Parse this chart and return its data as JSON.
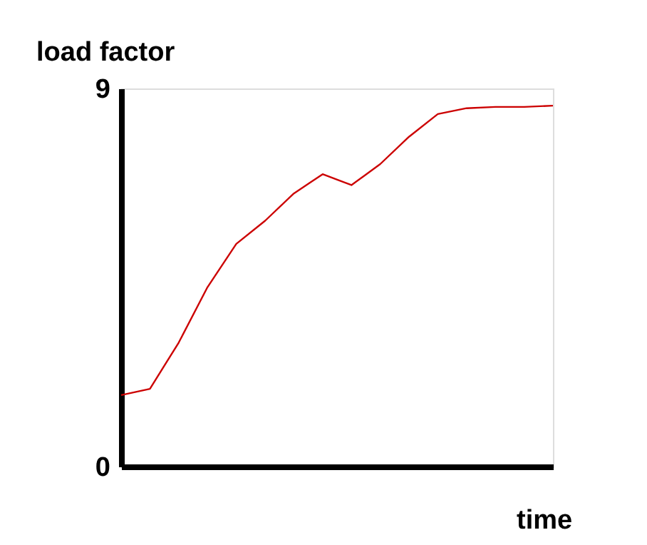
{
  "chart_data": {
    "type": "line",
    "xlabel": "time",
    "ylabel": "load factor",
    "categories": [
      null,
      null,
      null,
      null,
      null,
      null,
      null,
      null,
      null,
      null,
      null,
      null,
      null,
      null,
      null,
      null
    ],
    "series": [
      {
        "color": "#cc0000",
        "values": [
          1.7,
          1.85,
          2.95,
          4.27,
          5.3,
          5.85,
          6.5,
          6.96,
          6.7,
          7.2,
          7.85,
          8.39,
          8.53,
          8.56,
          8.56,
          8.59
        ]
      }
    ],
    "ylim": [
      0,
      9
    ],
    "yticks": [
      0,
      9
    ],
    "tick_labels": "y",
    "grid": false,
    "legend": false
  }
}
